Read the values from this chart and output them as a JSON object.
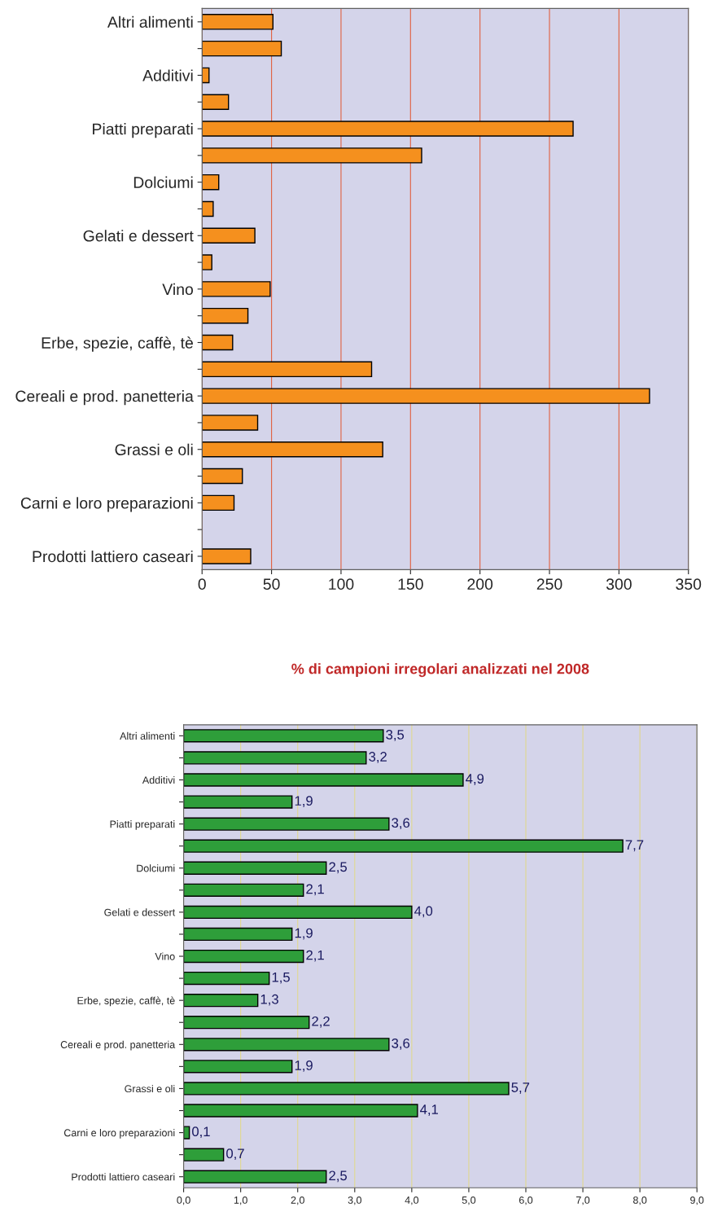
{
  "chart_data": [
    {
      "type": "bar",
      "orientation": "horizontal",
      "categories": [
        "Altri alimenti",
        null,
        "Additivi",
        null,
        "Piatti preparati",
        null,
        "Dolciumi",
        null,
        "Gelati e dessert",
        null,
        "Vino",
        null,
        "Erbe, spezie, caffè, tè",
        null,
        "Cereali e prod. panetteria",
        null,
        "Grassi e oli",
        null,
        "Carni e loro preparazioni",
        null,
        "Prodotti lattiero caseari"
      ],
      "values": [
        51,
        57,
        5,
        19,
        267,
        158,
        12,
        8,
        38,
        7,
        49,
        33,
        22,
        122,
        322,
        40,
        130,
        29,
        23,
        null,
        35
      ],
      "color": "#f5901e",
      "xlim": [
        0,
        350
      ],
      "xticks": [
        0,
        50,
        100,
        150,
        200,
        250,
        300,
        350
      ],
      "grid": "x"
    },
    {
      "type": "bar",
      "orientation": "horizontal",
      "title": "% di campioni irregolari analizzati nel 2008",
      "categories": [
        "Altri alimenti",
        null,
        "Additivi",
        null,
        "Piatti preparati",
        null,
        "Dolciumi",
        null,
        "Gelati e dessert",
        null,
        "Vino",
        null,
        "Erbe, spezie, caffè, tè",
        null,
        "Cereali e prod. panetteria",
        null,
        "Grassi e oli",
        null,
        "Carni e loro preparazioni",
        null,
        "Prodotti lattiero caseari"
      ],
      "values": [
        3.5,
        3.2,
        4.9,
        1.9,
        3.6,
        7.7,
        2.5,
        2.1,
        4.0,
        1.9,
        2.1,
        1.5,
        1.3,
        2.2,
        3.6,
        1.9,
        5.7,
        4.1,
        0.1,
        0.7,
        2.5
      ],
      "value_labels": [
        "3,5",
        "3,2",
        "4,9",
        "1,9",
        "3,6",
        "7,7",
        "2,5",
        "2,1",
        "4,0",
        "1,9",
        "2,1",
        "1,5",
        "1,3",
        "2,2",
        "3,6",
        "1,9",
        "5,7",
        "4,1",
        "0,1",
        "0,7",
        "2,5"
      ],
      "color": "#2e9e3a",
      "xlim": [
        0,
        9
      ],
      "xticks": [
        {
          "value": 0,
          "label": "0,0"
        },
        {
          "value": 1,
          "label": "1,0"
        },
        {
          "value": 2,
          "label": "2,0"
        },
        {
          "value": 3,
          "label": "3,0"
        },
        {
          "value": 4,
          "label": "4,0"
        },
        {
          "value": 5,
          "label": "5,0"
        },
        {
          "value": 6,
          "label": "6,0"
        },
        {
          "value": 7,
          "label": "7,0"
        },
        {
          "value": 8,
          "label": "8,0"
        },
        {
          "value": 9,
          "label": "9,0"
        }
      ],
      "grid": "x"
    }
  ]
}
